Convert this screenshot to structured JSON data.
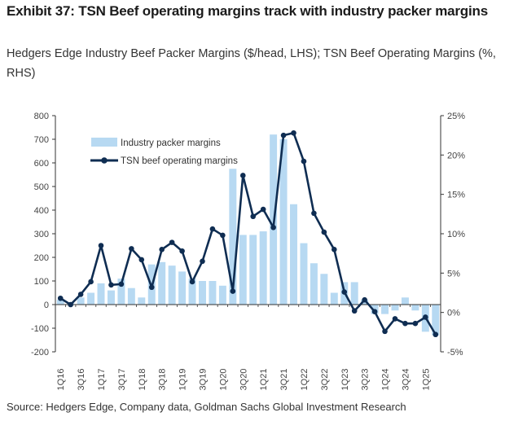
{
  "exhibit_title": "Exhibit 37: TSN Beef operating margins track with industry packer margins",
  "source": "Source: Hedgers Edge, Company data, Goldman Sachs Global Investment Research",
  "colors": {
    "bar": "#b7d9f2",
    "line": "#0f2d52",
    "axis": "#333333"
  },
  "chart_data": {
    "type": "bar+line",
    "title": "Hedgers Edge Industry Beef Packer Margins ($/head, LHS); TSN Beef Operating Margins (%, RHS)",
    "categories": [
      "1Q16",
      "2Q16",
      "3Q16",
      "4Q16",
      "1Q17",
      "2Q17",
      "3Q17",
      "4Q17",
      "1Q18",
      "2Q18",
      "3Q18",
      "4Q18",
      "1Q19",
      "2Q19",
      "3Q19",
      "4Q19",
      "1Q20",
      "2Q20",
      "3Q20",
      "4Q20",
      "1Q21",
      "2Q21",
      "3Q21",
      "4Q21",
      "1Q22",
      "2Q22",
      "3Q22",
      "4Q22",
      "1Q23",
      "2Q23",
      "3Q23",
      "4Q23",
      "1Q24",
      "2Q24",
      "3Q24",
      "4Q24",
      "1Q25",
      "2Q25"
    ],
    "x_tick_labels": [
      "1Q16",
      "3Q16",
      "1Q17",
      "3Q17",
      "1Q18",
      "3Q18",
      "1Q19",
      "3Q19",
      "1Q20",
      "3Q20",
      "1Q21",
      "3Q21",
      "1Q22",
      "3Q22",
      "1Q23",
      "3Q23",
      "1Q24",
      "3Q24",
      "1Q25"
    ],
    "y_left": {
      "ylim": [
        -200,
        800
      ],
      "ticks": [
        "-200",
        "-100",
        "0",
        "100",
        "200",
        "300",
        "400",
        "500",
        "600",
        "700",
        "800"
      ]
    },
    "y_right": {
      "ylim": [
        -5,
        25
      ],
      "ticks": [
        "-5%",
        "0%",
        "5%",
        "10%",
        "15%",
        "20%",
        "25%"
      ]
    },
    "legend_position": "top-left",
    "series": [
      {
        "name": "Industry packer margins",
        "type": "bar",
        "axis": "left",
        "values": [
          20,
          8,
          30,
          50,
          90,
          60,
          110,
          70,
          30,
          170,
          180,
          165,
          140,
          110,
          100,
          100,
          80,
          575,
          295,
          295,
          310,
          720,
          700,
          425,
          260,
          175,
          130,
          50,
          95,
          95,
          20,
          -40,
          -40,
          -25,
          30,
          -25,
          -115,
          -130
        ]
      },
      {
        "name": "TSN beef operating margins",
        "type": "line",
        "axis": "right",
        "values": [
          1.8,
          1.0,
          2.3,
          3.9,
          8.5,
          3.5,
          3.6,
          8.1,
          6.7,
          3.2,
          8.0,
          8.9,
          7.8,
          3.9,
          6.5,
          10.6,
          9.8,
          2.7,
          17.4,
          12.2,
          13.1,
          10.8,
          22.5,
          22.8,
          19.2,
          12.6,
          10.2,
          8.0,
          2.6,
          0.2,
          1.6,
          0.1,
          -2.4,
          -0.8,
          -1.4,
          -1.4,
          -0.6,
          -2.8
        ]
      }
    ]
  }
}
